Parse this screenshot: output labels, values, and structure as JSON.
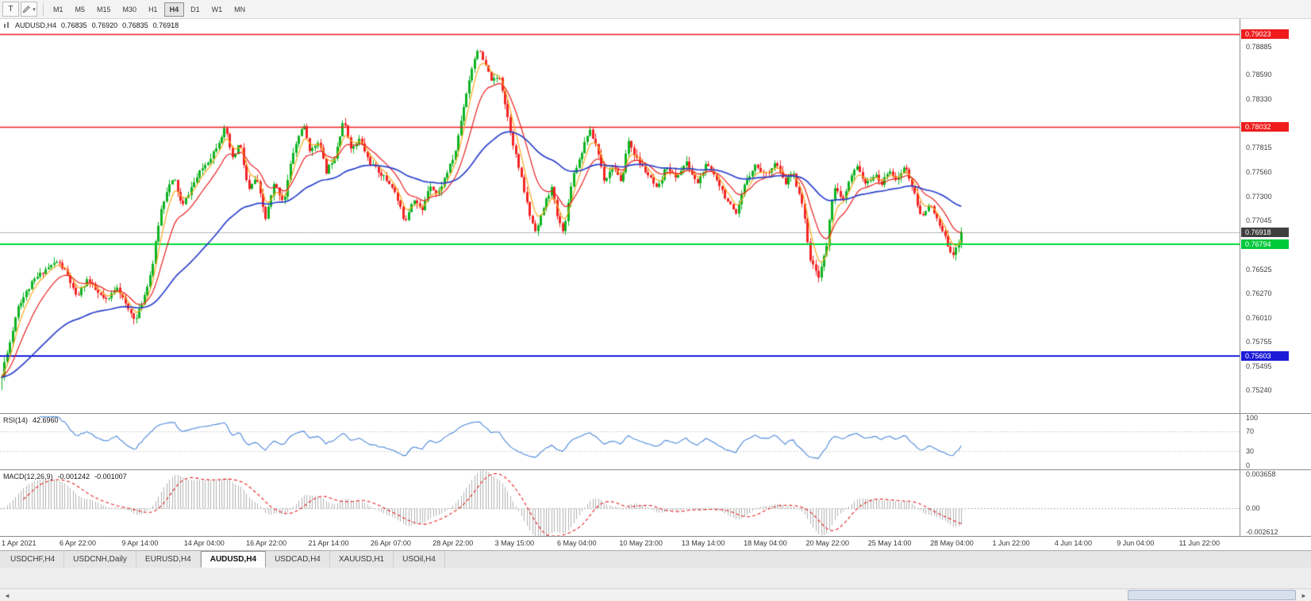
{
  "colors": {
    "candle_up": "#0eb321",
    "candle_down": "#f32424",
    "bid_line": "#b4b4b4"
  },
  "toolbar": {
    "tool_button_label": "T",
    "timeframes": [
      "M1",
      "M5",
      "M15",
      "M30",
      "H1",
      "H4",
      "D1",
      "W1",
      "MN"
    ],
    "active_timeframe": "H4"
  },
  "price_pane": {
    "title": {
      "symbol": "AUDUSD,H4",
      "open": "0.76835",
      "high": "0.76920",
      "low": "0.76835",
      "close": "0.76918"
    },
    "axis_ticks": [
      "0.78885",
      "0.78590",
      "0.78330",
      "0.77815",
      "0.77560",
      "0.77300",
      "0.77045",
      "0.76525",
      "0.76270",
      "0.76010",
      "0.75755",
      "0.75495",
      "0.75240"
    ],
    "line_labels": [
      {
        "value": "0.79023",
        "color": "#ee1c1c"
      },
      {
        "value": "0.78032",
        "color": "#ee1c1c"
      },
      {
        "value": "0.76918",
        "color": "#3f3f3f"
      },
      {
        "value": "0.76794",
        "color": "#00c93a"
      },
      {
        "value": "0.75603",
        "color": "#1c1cd8"
      }
    ]
  },
  "rsi_pane": {
    "name": "RSI(14)",
    "value": "42.6960",
    "ticks": [
      {
        "label": "100",
        "value": 100
      },
      {
        "label": "70",
        "value": 70
      },
      {
        "label": "30",
        "value": 30
      },
      {
        "label": "0",
        "value": 0
      }
    ]
  },
  "macd_pane": {
    "name": "MACD(12,26,9)",
    "value_main": "-0.001242",
    "value_signal": "-0.001007",
    "ticks": [
      {
        "label": "0.003658",
        "value": 0.003658
      },
      {
        "label": "0.00",
        "value": 0
      },
      {
        "label": "-0.002612",
        "value": -0.002612
      }
    ]
  },
  "time_axis": {
    "labels": [
      "1 Apr 2021",
      "6 Apr 22:00",
      "9 Apr 14:00",
      "14 Apr 04:00",
      "16 Apr 22:00",
      "21 Apr 14:00",
      "26 Apr 07:00",
      "28 Apr 22:00",
      "3 May 15:00",
      "6 May 04:00",
      "10 May 23:00",
      "13 May 14:00",
      "18 May 04:00",
      "20 May 22:00",
      "25 May 14:00",
      "28 May 04:00",
      "1 Jun 22:00",
      "4 Jun 14:00",
      "9 Jun 04:00",
      "11 Jun 22:00"
    ]
  },
  "tabs": {
    "items": [
      "USDCHF,H4",
      "USDCNH,Daily",
      "EURUSD,H4",
      "AUDUSD,H4",
      "USDCAD,H4",
      "XAUUSD,H1",
      "USOil,H4"
    ],
    "active": "AUDUSD,H4"
  },
  "chart_data": {
    "type": "candlestick",
    "symbol": "AUDUSD",
    "timeframe": "H4",
    "ohlc_current": {
      "open": 0.76835,
      "high": 0.7692,
      "low": 0.76835,
      "close": 0.76918
    },
    "price_axis_range": {
      "top": 0.7918,
      "bottom": 0.75
    },
    "n_candles": 350,
    "data_width_fraction": 0.7766,
    "seed": 11,
    "noise": 0.0005,
    "wick": 0.0006,
    "start_low": 0.75245,
    "low_clamp": 0.75242,
    "high_clamp": 0.7896,
    "last_close": 0.76918,
    "price_waypoints": [
      [
        0.0,
        0.7538
      ],
      [
        0.004,
        0.756
      ],
      [
        0.01,
        0.758
      ],
      [
        0.016,
        0.7612
      ],
      [
        0.033,
        0.764
      ],
      [
        0.045,
        0.7652
      ],
      [
        0.058,
        0.7661
      ],
      [
        0.068,
        0.7648
      ],
      [
        0.078,
        0.7622
      ],
      [
        0.089,
        0.7642
      ],
      [
        0.099,
        0.7628
      ],
      [
        0.11,
        0.7618
      ],
      [
        0.12,
        0.7636
      ],
      [
        0.13,
        0.7612
      ],
      [
        0.14,
        0.7599
      ],
      [
        0.148,
        0.7622
      ],
      [
        0.157,
        0.7655
      ],
      [
        0.165,
        0.7712
      ],
      [
        0.173,
        0.774
      ],
      [
        0.18,
        0.7748
      ],
      [
        0.188,
        0.7718
      ],
      [
        0.198,
        0.774
      ],
      [
        0.208,
        0.7758
      ],
      [
        0.218,
        0.7772
      ],
      [
        0.228,
        0.7792
      ],
      [
        0.233,
        0.7802
      ],
      [
        0.241,
        0.7768
      ],
      [
        0.248,
        0.7788
      ],
      [
        0.257,
        0.7735
      ],
      [
        0.265,
        0.775
      ],
      [
        0.275,
        0.7706
      ],
      [
        0.284,
        0.7743
      ],
      [
        0.294,
        0.7724
      ],
      [
        0.303,
        0.7775
      ],
      [
        0.314,
        0.7807
      ],
      [
        0.322,
        0.7776
      ],
      [
        0.33,
        0.779
      ],
      [
        0.338,
        0.7756
      ],
      [
        0.347,
        0.7773
      ],
      [
        0.356,
        0.7811
      ],
      [
        0.365,
        0.7779
      ],
      [
        0.373,
        0.7791
      ],
      [
        0.383,
        0.7766
      ],
      [
        0.396,
        0.7753
      ],
      [
        0.408,
        0.7739
      ],
      [
        0.42,
        0.7703
      ],
      [
        0.429,
        0.7729
      ],
      [
        0.438,
        0.7713
      ],
      [
        0.446,
        0.7744
      ],
      [
        0.454,
        0.7731
      ],
      [
        0.463,
        0.7753
      ],
      [
        0.472,
        0.7774
      ],
      [
        0.481,
        0.7824
      ],
      [
        0.489,
        0.7863
      ],
      [
        0.496,
        0.7887
      ],
      [
        0.504,
        0.7868
      ],
      [
        0.511,
        0.7852
      ],
      [
        0.519,
        0.7857
      ],
      [
        0.526,
        0.782
      ],
      [
        0.534,
        0.7781
      ],
      [
        0.542,
        0.7746
      ],
      [
        0.551,
        0.7706
      ],
      [
        0.557,
        0.7693
      ],
      [
        0.566,
        0.7723
      ],
      [
        0.573,
        0.7739
      ],
      [
        0.58,
        0.7703
      ],
      [
        0.586,
        0.7693
      ],
      [
        0.594,
        0.7749
      ],
      [
        0.603,
        0.7773
      ],
      [
        0.612,
        0.7801
      ],
      [
        0.62,
        0.7783
      ],
      [
        0.628,
        0.7746
      ],
      [
        0.637,
        0.7763
      ],
      [
        0.645,
        0.7743
      ],
      [
        0.653,
        0.7789
      ],
      [
        0.662,
        0.7769
      ],
      [
        0.673,
        0.7753
      ],
      [
        0.683,
        0.7736
      ],
      [
        0.693,
        0.7763
      ],
      [
        0.702,
        0.7749
      ],
      [
        0.713,
        0.7766
      ],
      [
        0.724,
        0.7743
      ],
      [
        0.734,
        0.7763
      ],
      [
        0.744,
        0.7751
      ],
      [
        0.754,
        0.7729
      ],
      [
        0.765,
        0.7709
      ],
      [
        0.775,
        0.7746
      ],
      [
        0.785,
        0.7763
      ],
      [
        0.796,
        0.7753
      ],
      [
        0.806,
        0.7766
      ],
      [
        0.816,
        0.7743
      ],
      [
        0.824,
        0.7756
      ],
      [
        0.834,
        0.7723
      ],
      [
        0.843,
        0.7659
      ],
      [
        0.851,
        0.7646
      ],
      [
        0.859,
        0.7673
      ],
      [
        0.867,
        0.7743
      ],
      [
        0.876,
        0.7723
      ],
      [
        0.884,
        0.7749
      ],
      [
        0.892,
        0.7763
      ],
      [
        0.9,
        0.7741
      ],
      [
        0.909,
        0.7753
      ],
      [
        0.917,
        0.7743
      ],
      [
        0.925,
        0.7759
      ],
      [
        0.933,
        0.7746
      ],
      [
        0.941,
        0.7763
      ],
      [
        0.95,
        0.7736
      ],
      [
        0.958,
        0.7706
      ],
      [
        0.966,
        0.7723
      ],
      [
        0.975,
        0.7703
      ],
      [
        0.981,
        0.769
      ],
      [
        0.986,
        0.7678
      ],
      [
        0.991,
        0.7668
      ],
      [
        0.995,
        0.7675
      ],
      [
        1.0,
        0.76918
      ]
    ],
    "moving_averages": [
      {
        "period": 5,
        "type": "ema",
        "color": "#f7a81c"
      },
      {
        "period": 13,
        "type": "ema",
        "color": "#e81f1f"
      },
      {
        "period": 55,
        "type": "ema",
        "color": "#2a41cc"
      }
    ],
    "horizontal_lines": [
      {
        "price": 0.79023,
        "color": "#ee1c1c",
        "width": 1.6
      },
      {
        "price": 0.78032,
        "color": "#ee1c1c",
        "width": 1.6
      },
      {
        "price": 0.76794,
        "color": "#00d838",
        "width": 2
      },
      {
        "price": 0.75603,
        "color": "#1c1cd8",
        "width": 2
      }
    ],
    "bid_line": {
      "price": 0.76918,
      "color": "#b4b4b4"
    },
    "rsi": {
      "period": 14,
      "current": 42.696,
      "color": "#4a86d8",
      "levels": [
        70,
        30
      ]
    },
    "macd": {
      "fast": 12,
      "slow": 26,
      "signal": 9,
      "current": -0.001242,
      "current_signal": -0.001007,
      "hist_color": "#b0b0b0",
      "signal_color": "#e32020",
      "scale_top": 0.003658,
      "scale_bottom": -0.002612
    }
  }
}
